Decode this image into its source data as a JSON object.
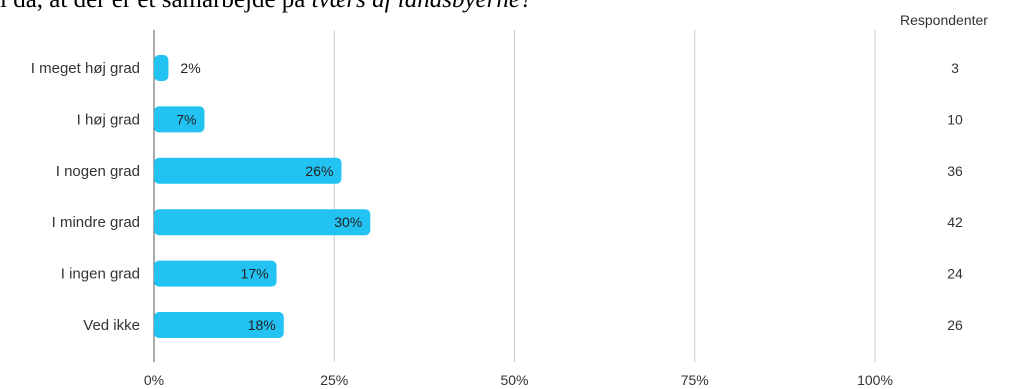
{
  "title_prefix": "l da, at der er et samarbejde på ",
  "title_italic": "tværs af landsbyerne?",
  "respondents_header": "Respondenter",
  "bar_color": "#22c3f3",
  "grid_color": "#c8c8c8",
  "chart_data": {
    "type": "bar",
    "orientation": "horizontal",
    "categories": [
      "I meget høj grad",
      "I høj grad",
      "I nogen grad",
      "I mindre grad",
      "I ingen grad",
      "Ved ikke"
    ],
    "values": [
      2,
      7,
      26,
      30,
      17,
      18
    ],
    "value_labels": [
      "2%",
      "7%",
      "26%",
      "30%",
      "17%",
      "18%"
    ],
    "respondents": [
      "3",
      "10",
      "36",
      "42",
      "24",
      "26"
    ],
    "xlim": [
      0,
      100
    ],
    "xticks": [
      0,
      25,
      50,
      75,
      100
    ],
    "xtick_labels": [
      "0%",
      "25%",
      "50%",
      "75%",
      "100%"
    ],
    "grid": true
  }
}
